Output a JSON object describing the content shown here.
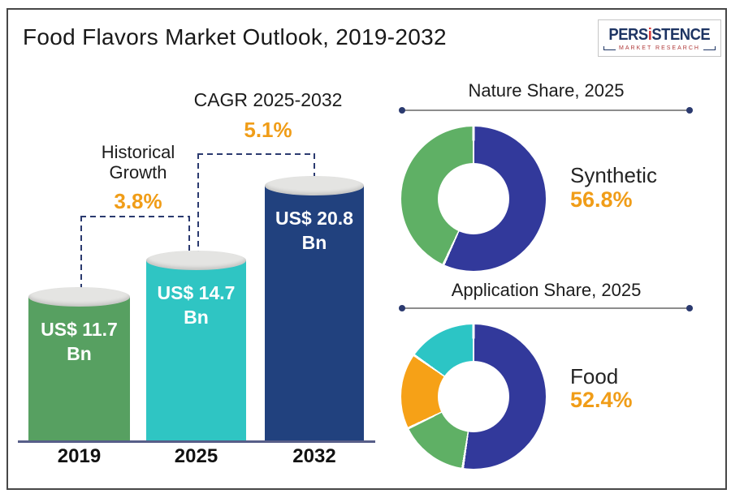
{
  "header": {
    "title": "Food Flavors Market Outlook, 2019-2032",
    "logo": {
      "brand_pre": "PERS",
      "brand_i": "i",
      "brand_post": "STENCE",
      "tagline": "MARKET RESEARCH"
    }
  },
  "colors": {
    "accent_orange": "#f09d18",
    "dashed_line": "#2b3a6f",
    "baseline": "#575e88",
    "cylinder_cap": "#e4e4e2",
    "logo_navy": "#1d3463",
    "logo_red": "#d73b3b"
  },
  "chart_data": [
    {
      "type": "bar",
      "title": "Food Flavors Market Outlook, 2019-2032",
      "categories": [
        "2019",
        "2025",
        "2032"
      ],
      "values": [
        11.7,
        14.7,
        20.8
      ],
      "unit": "US$ Bn",
      "bar_labels": [
        [
          "US$ 11.7",
          "Bn"
        ],
        [
          "US$ 14.7",
          "Bn"
        ],
        [
          "US$ 20.8",
          "Bn"
        ]
      ],
      "colors": [
        "#57a061",
        "#2fc5c3",
        "#21417e"
      ],
      "ylim": [
        0,
        22
      ],
      "annotations": [
        {
          "label": "Historical Growth",
          "value": "3.8%",
          "span": "2019-2025"
        },
        {
          "label": "CAGR 2025-2032",
          "value": "5.1%",
          "span": "2025-2032"
        }
      ]
    },
    {
      "type": "pie",
      "title": "Nature Share, 2025",
      "values": [
        56.8,
        43.2
      ],
      "colors": [
        "#32399b",
        "#5fb065"
      ],
      "labels": [
        "Synthetic",
        ""
      ],
      "callout": {
        "label": "Synthetic",
        "value": "56.8%"
      },
      "donut_hole": true,
      "start_angle_deg": 0,
      "direction": "clockwise"
    },
    {
      "type": "pie",
      "title": "Application Share, 2025",
      "values": [
        52.4,
        15.4,
        16.9,
        15.3
      ],
      "colors": [
        "#32399b",
        "#5fb065",
        "#f6a117",
        "#2cc5c5"
      ],
      "labels": [
        "Food",
        "",
        "",
        ""
      ],
      "callout": {
        "label": "Food",
        "value": "52.4%"
      },
      "donut_hole": true,
      "start_angle_deg": 0,
      "direction": "clockwise"
    }
  ]
}
